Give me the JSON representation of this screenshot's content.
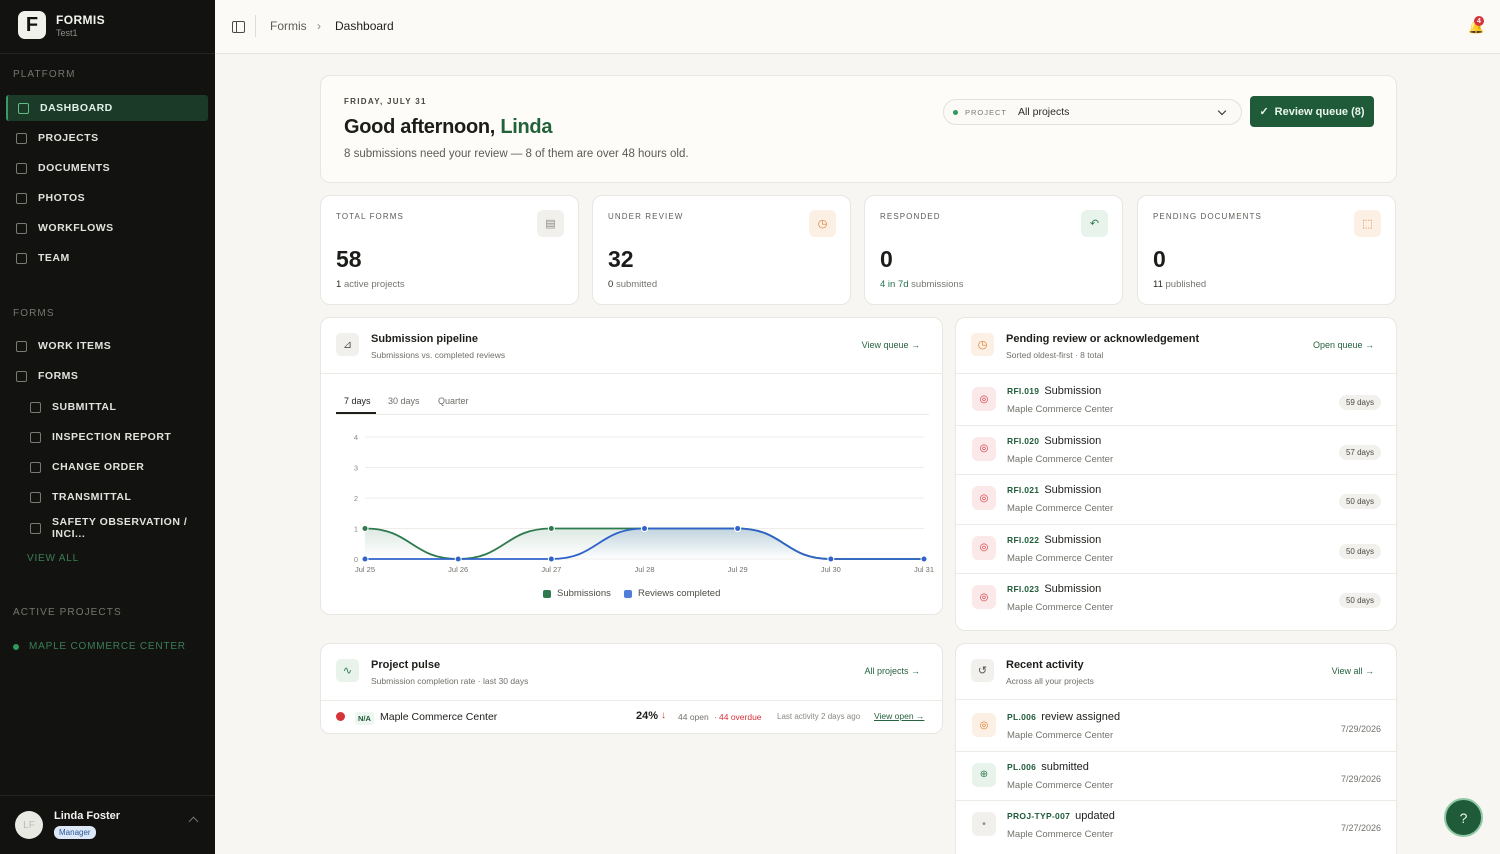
{
  "app": {
    "name": "FORMIS",
    "workspace": "Test1",
    "logo_letter": "F"
  },
  "sidebar": {
    "platform_label": "PLATFORM",
    "platform_items": [
      {
        "label": "DASHBOARD",
        "icon": "grid-icon",
        "active": true
      },
      {
        "label": "PROJECTS",
        "icon": "building-icon"
      },
      {
        "label": "DOCUMENTS",
        "icon": "document-icon"
      },
      {
        "label": "PHOTOS",
        "icon": "image-icon"
      },
      {
        "label": "WORKFLOWS",
        "icon": "workflow-icon"
      },
      {
        "label": "TEAM",
        "icon": "team-icon"
      }
    ],
    "forms_label": "FORMS",
    "forms_items": [
      {
        "label": "WORK ITEMS",
        "icon": "list-icon"
      },
      {
        "label": "FORMS",
        "icon": "clipboard-icon"
      }
    ],
    "form_types": [
      {
        "label": "SUBMITTAL",
        "icon": "clipboard-icon"
      },
      {
        "label": "INSPECTION REPORT",
        "icon": "clipboard-icon"
      },
      {
        "label": "CHANGE ORDER",
        "icon": "clipboard-icon"
      },
      {
        "label": "TRANSMITTAL",
        "icon": "share-icon"
      },
      {
        "label": "SAFETY OBSERVATION / INCI...",
        "icon": "clipboard-icon"
      }
    ],
    "view_all": "VIEW ALL",
    "active_projects_label": "ACTIVE PROJECTS",
    "active_projects": [
      "MAPLE COMMERCE CENTER"
    ],
    "user": {
      "name": "Linda Foster",
      "role": "Manager",
      "initials": "LF"
    }
  },
  "topbar": {
    "breadcrumb": [
      "Formis",
      "Dashboard"
    ],
    "notifications": "4"
  },
  "hero": {
    "date": "FRIDAY, JULY 31",
    "greeting": "Good afternoon,",
    "name": "Linda",
    "subtitle": "8 submissions need your review — 8 of them are over 48 hours old.",
    "project_label": "PROJECT",
    "project_value": "All projects",
    "review_button": "Review queue (8)"
  },
  "stats": [
    {
      "label": "TOTAL FORMS",
      "value": "58",
      "sub_strong": "1",
      "sub": "active projects",
      "icon": "document-icon",
      "color": "#8a8b85",
      "bg": "#f1f0ec"
    },
    {
      "label": "UNDER REVIEW",
      "value": "32",
      "sub_strong": "0",
      "sub": "submitted",
      "icon": "clock-icon",
      "color": "#d97a2b",
      "bg": "#fcefe3"
    },
    {
      "label": "RESPONDED",
      "value": "0",
      "sub_strong": "4 in 7d",
      "sub": "submissions",
      "icon": "reply-icon",
      "color": "#2e7a4f",
      "bg": "#e8f3ec"
    },
    {
      "label": "PENDING DOCUMENTS",
      "value": "0",
      "sub_strong": "11",
      "sub": "published",
      "icon": "file-pending-icon",
      "color": "#d97a2b",
      "bg": "#fcefe3"
    }
  ],
  "pipeline": {
    "title": "Submission pipeline",
    "subtitle": "Submissions vs. completed reviews",
    "link": "View queue",
    "tabs": [
      "7 days",
      "30 days",
      "Quarter"
    ]
  },
  "chart_data": {
    "type": "line",
    "categories": [
      "Jul 25",
      "Jul 26",
      "Jul 27",
      "Jul 28",
      "Jul 29",
      "Jul 30",
      "Jul 31"
    ],
    "series": [
      {
        "name": "Submissions",
        "values": [
          1,
          0,
          1,
          1,
          1,
          0,
          0
        ],
        "color": "#2e7a4f"
      },
      {
        "name": "Reviews completed",
        "values": [
          0,
          0,
          0,
          1,
          1,
          0,
          0
        ],
        "color": "#2f63c9"
      }
    ],
    "yticks": [
      "0",
      "1",
      "2",
      "3",
      "4"
    ],
    "ylim": [
      0,
      4
    ],
    "grid": true,
    "legend": "bottom"
  },
  "pending": {
    "title": "Pending review or acknowledgement",
    "subtitle": "Sorted oldest-first · 8 total",
    "link": "Open queue",
    "items": [
      {
        "id": "RFI.019",
        "title": "Submission",
        "project": "Maple Commerce Center",
        "age": "59 days"
      },
      {
        "id": "RFI.020",
        "title": "Submission",
        "project": "Maple Commerce Center",
        "age": "57 days"
      },
      {
        "id": "RFI.021",
        "title": "Submission",
        "project": "Maple Commerce Center",
        "age": "50 days"
      },
      {
        "id": "RFI.022",
        "title": "Submission",
        "project": "Maple Commerce Center",
        "age": "50 days"
      },
      {
        "id": "RFI.023",
        "title": "Submission",
        "project": "Maple Commerce Center",
        "age": "50 days"
      }
    ]
  },
  "pulse": {
    "title": "Project pulse",
    "subtitle": "Submission completion rate · last 30 days",
    "link": "All projects",
    "row": {
      "badge": "N/A",
      "name": "Maple Commerce Center",
      "rate": "24%",
      "open": "44 open",
      "overdue": "44 overdue",
      "last": "Last activity 2 days ago",
      "action": "View open"
    }
  },
  "activity": {
    "title": "Recent activity",
    "subtitle": "Across all your projects",
    "link": "View all",
    "items": [
      {
        "id": "PL.006",
        "action": "review assigned",
        "project": "Maple Commerce Center",
        "date": "7/29/2026",
        "icon": "target-icon"
      },
      {
        "id": "PL.006",
        "action": "submitted",
        "project": "Maple Commerce Center",
        "date": "7/29/2026",
        "icon": "file-add-icon"
      },
      {
        "id": "PROJ-TYP-007",
        "action": "updated",
        "project": "Maple Commerce Center",
        "date": "7/27/2026",
        "icon": "dot-icon"
      }
    ]
  }
}
